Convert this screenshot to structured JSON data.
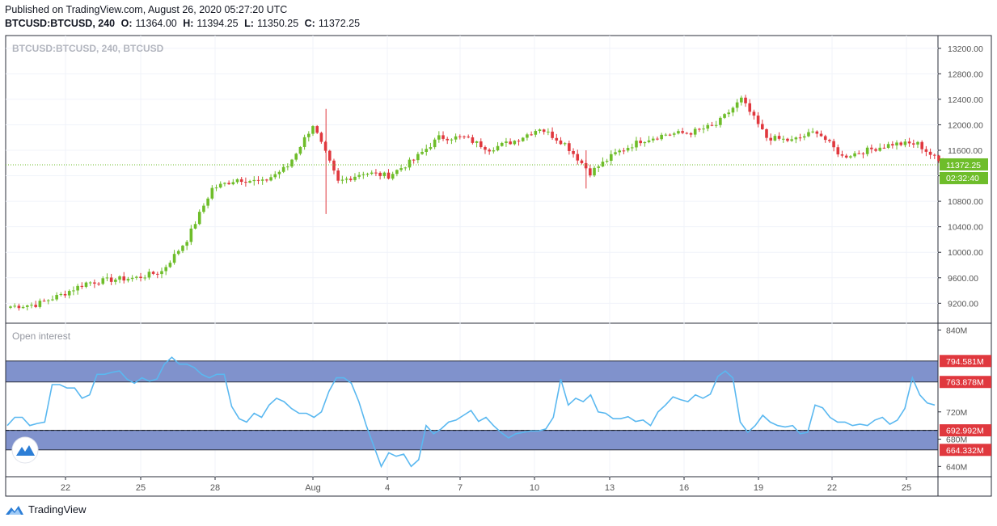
{
  "header": {
    "published": "Published on TradingView.com, August 26, 2020 05:27:20 UTC",
    "symbol_tf": "BTCUSD:BTCUSD, 240",
    "o_label": "O:",
    "o": "11364.00",
    "h_label": "H:",
    "h": "11394.25",
    "l_label": "L:",
    "l": "11350.25",
    "c_label": "C:",
    "c": "11372.25"
  },
  "footer": {
    "brand": "TradingView",
    "logo_icon": "tradingview-logo-icon"
  },
  "colors": {
    "up": "#6ebd2a",
    "down": "#e0383e",
    "oi_line": "#5ab8f0",
    "band": "#8092cc",
    "price_badge": "#6ebd2a",
    "oi_badge": "#e0383e"
  },
  "chart_data": [
    {
      "type": "candlestick",
      "title": "BTCUSD:BTCUSD, 240, BTCUSD",
      "x_ticks": [
        "22",
        "25",
        "28",
        "Aug",
        "4",
        "7",
        "10",
        "13",
        "16",
        "19",
        "22",
        "25"
      ],
      "y_ticks": [
        "13200.00",
        "12800.00",
        "12400.00",
        "12000.00",
        "11600.00",
        "11200.00",
        "10800.00",
        "10400.00",
        "10000.00",
        "9600.00",
        "9200.00"
      ],
      "ylim": [
        8900,
        13400
      ],
      "last_price": "11372.25",
      "countdown": "02:32:40",
      "grid": true,
      "daily_path": [
        {
          "date": "Jul 20",
          "price": 9150
        },
        {
          "date": "Jul 21",
          "price": 9180
        },
        {
          "date": "Jul 22",
          "price": 9330
        },
        {
          "date": "Jul 23",
          "price": 9520
        },
        {
          "date": "Jul 24",
          "price": 9570
        },
        {
          "date": "Jul 25",
          "price": 9600
        },
        {
          "date": "Jul 26",
          "price": 9700
        },
        {
          "date": "Jul 27",
          "price": 10200
        },
        {
          "date": "Jul 28",
          "price": 11000
        },
        {
          "date": "Jul 29",
          "price": 11150
        },
        {
          "date": "Jul 30",
          "price": 11100
        },
        {
          "date": "Jul 31",
          "price": 11350
        },
        {
          "date": "Aug 1",
          "price": 12000
        },
        {
          "date": "Aug 2",
          "price": 11100
        },
        {
          "date": "Aug 3",
          "price": 11250
        },
        {
          "date": "Aug 4",
          "price": 11200
        },
        {
          "date": "Aug 5",
          "price": 11450
        },
        {
          "date": "Aug 6",
          "price": 11800
        },
        {
          "date": "Aug 7",
          "price": 11800
        },
        {
          "date": "Aug 8",
          "price": 11620
        },
        {
          "date": "Aug 9",
          "price": 11750
        },
        {
          "date": "Aug 10",
          "price": 11950
        },
        {
          "date": "Aug 11",
          "price": 11700
        },
        {
          "date": "Aug 12",
          "price": 11250
        },
        {
          "date": "Aug 13",
          "price": 11550
        },
        {
          "date": "Aug 14",
          "price": 11750
        },
        {
          "date": "Aug 15",
          "price": 11850
        },
        {
          "date": "Aug 16",
          "price": 11880
        },
        {
          "date": "Aug 17",
          "price": 12000
        },
        {
          "date": "Aug 18",
          "price": 12400
        },
        {
          "date": "Aug 19",
          "price": 11800
        },
        {
          "date": "Aug 20",
          "price": 11750
        },
        {
          "date": "Aug 21",
          "price": 11900
        },
        {
          "date": "Aug 22",
          "price": 11500
        },
        {
          "date": "Aug 23",
          "price": 11600
        },
        {
          "date": "Aug 24",
          "price": 11700
        },
        {
          "date": "Aug 25",
          "price": 11700
        },
        {
          "date": "Aug 26",
          "price": 11372
        }
      ]
    },
    {
      "type": "line",
      "title": "Open interest",
      "y_ticks": [
        "840M",
        "720M",
        "680M",
        "640M"
      ],
      "ylim": [
        625,
        850
      ],
      "bands": [
        [
          763.878,
          794.581
        ],
        [
          664.332,
          692.992
        ]
      ],
      "markers": [
        "794.581M",
        "763.878M",
        "692.992M",
        "664.332M"
      ],
      "values_M": [
        700,
        712,
        712,
        700,
        703,
        705,
        760,
        760,
        755,
        755,
        740,
        745,
        775,
        775,
        778,
        780,
        768,
        762,
        770,
        765,
        768,
        790,
        800,
        790,
        790,
        785,
        775,
        770,
        775,
        775,
        728,
        710,
        705,
        718,
        712,
        730,
        740,
        735,
        725,
        718,
        718,
        712,
        720,
        750,
        770,
        770,
        762,
        735,
        700,
        670,
        640,
        660,
        655,
        658,
        640,
        650,
        700,
        688,
        695,
        705,
        708,
        715,
        722,
        706,
        712,
        700,
        690,
        682,
        688,
        690,
        692,
        692,
        695,
        712,
        768,
        730,
        740,
        735,
        745,
        720,
        718,
        710,
        710,
        713,
        706,
        708,
        700,
        720,
        730,
        742,
        738,
        735,
        745,
        740,
        746,
        772,
        780,
        770,
        705,
        690,
        700,
        715,
        705,
        700,
        698,
        700,
        688,
        690,
        730,
        726,
        712,
        705,
        705,
        700,
        702,
        700,
        708,
        712,
        702,
        708,
        725,
        770,
        745,
        733,
        730
      ]
    }
  ]
}
